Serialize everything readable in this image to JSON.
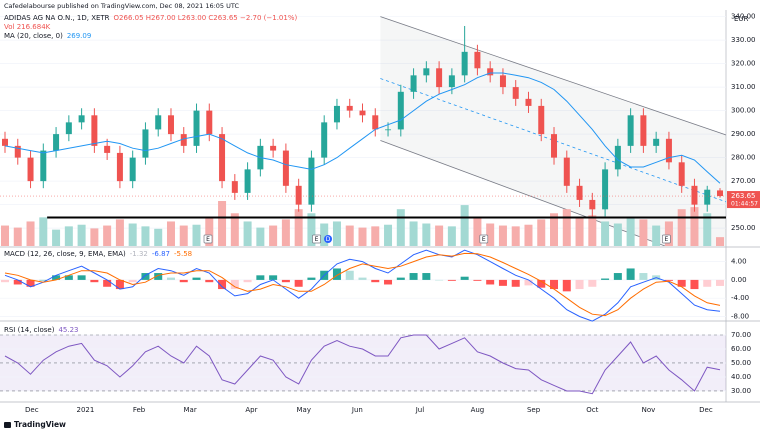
{
  "header": {
    "publisher": "Cafedelabourse published on TradingView.com, Dec 08, 2021 16:05 UTC",
    "footer": "TradingView"
  },
  "chart_data": [
    {
      "type": "candlestick",
      "title": "ADIDAS AG NA O.N., 1D, XETR",
      "ohlc_text": "O266.05 H267.00 L263.00 C263.65 −2.70 (−1.01%)",
      "volume_text": "Vol 216.684K",
      "ma_title": "MA (20, close, 0)",
      "currency": "EUR",
      "countdown": "01:44:57",
      "open": [
        288,
        285,
        280,
        270,
        283,
        290,
        295,
        298,
        285,
        282,
        270,
        280,
        292,
        298,
        290,
        285,
        300,
        290,
        270,
        265,
        275,
        285,
        283,
        268,
        260,
        280,
        295,
        302,
        300,
        298,
        292,
        292,
        308,
        315,
        318,
        310,
        315,
        325,
        318,
        315,
        310,
        305,
        302,
        290,
        280,
        268,
        262,
        258,
        275,
        285,
        298,
        285,
        288,
        278,
        268,
        260,
        266.05
      ],
      "high": [
        291,
        288,
        283,
        286,
        293,
        298,
        301,
        301,
        288,
        285,
        283,
        295,
        301,
        301,
        293,
        303,
        303,
        293,
        273,
        278,
        288,
        288,
        286,
        271,
        283,
        298,
        305,
        305,
        303,
        301,
        295,
        311,
        318,
        321,
        321,
        318,
        336,
        328,
        321,
        318,
        313,
        308,
        305,
        293,
        283,
        271,
        265,
        278,
        288,
        301,
        301,
        291,
        291,
        281,
        271,
        268,
        267
      ],
      "low": [
        282,
        277,
        267,
        267,
        280,
        287,
        292,
        282,
        279,
        267,
        267,
        277,
        289,
        287,
        282,
        282,
        287,
        267,
        262,
        262,
        272,
        280,
        265,
        257,
        257,
        277,
        292,
        297,
        295,
        289,
        289,
        289,
        305,
        312,
        307,
        307,
        312,
        315,
        312,
        307,
        302,
        299,
        287,
        277,
        265,
        259,
        255,
        255,
        272,
        282,
        282,
        282,
        275,
        265,
        257,
        257,
        263
      ],
      "close": [
        285,
        280,
        270,
        283,
        290,
        295,
        298,
        285,
        282,
        270,
        280,
        292,
        298,
        290,
        285,
        300,
        290,
        270,
        265,
        275,
        285,
        283,
        268,
        260,
        280,
        295,
        302,
        300,
        298,
        292,
        292,
        308,
        315,
        318,
        310,
        315,
        325,
        318,
        315,
        310,
        305,
        302,
        290,
        280,
        268,
        262,
        258,
        275,
        285,
        298,
        285,
        288,
        278,
        268,
        260,
        266.35,
        263.65
      ],
      "volume": [
        500,
        450,
        600,
        700,
        400,
        480,
        520,
        430,
        500,
        650,
        550,
        480,
        420,
        600,
        500,
        520,
        700,
        1100,
        800,
        600,
        450,
        500,
        650,
        900,
        800,
        550,
        600,
        500,
        450,
        480,
        520,
        900,
        600,
        550,
        500,
        480,
        1000,
        700,
        550,
        500,
        480,
        520,
        650,
        800,
        900,
        700,
        750,
        600,
        550,
        700,
        650,
        500,
        600,
        900,
        950,
        800,
        216.684
      ],
      "ma": [
        285,
        284,
        283,
        282,
        283,
        284,
        285,
        286,
        287,
        286,
        284,
        283,
        284,
        286,
        288,
        289,
        290,
        288,
        285,
        282,
        280,
        279,
        277,
        276,
        275,
        277,
        280,
        284,
        288,
        292,
        294,
        296,
        300,
        304,
        307,
        309,
        311,
        314,
        316,
        316,
        315,
        314,
        312,
        309,
        304,
        298,
        292,
        285,
        279,
        276,
        276,
        278,
        280,
        281,
        279,
        274,
        269.09
      ],
      "ylim": [
        242.4,
        342.8
      ],
      "yticks": [
        {
          "value": 250,
          "label": "250.00"
        },
        {
          "value": 260,
          "label": "260.00"
        },
        {
          "value": 270,
          "label": "270.00"
        },
        {
          "value": 280,
          "label": "280.00"
        },
        {
          "value": 290,
          "label": "290.00"
        },
        {
          "value": 300,
          "label": "300.00"
        },
        {
          "value": 310,
          "label": "310.00"
        },
        {
          "value": 320,
          "label": "320.00"
        },
        {
          "value": 330,
          "label": "330.00"
        },
        {
          "value": 340,
          "label": "340.00"
        }
      ],
      "channel": {
        "x": [
          29.4,
          56.6
        ],
        "top": [
          340,
          289.4
        ],
        "bottom": [
          287.3,
          232.5
        ]
      },
      "support": {
        "x": [
          3.3,
          56.6
        ],
        "price": 254.5
      },
      "events": [
        {
          "label": "E",
          "at": 15.9
        },
        {
          "label": "E",
          "at": 24.4
        },
        {
          "label": "D",
          "at": 25.3
        },
        {
          "label": "E",
          "at": 37.5
        },
        {
          "label": "E",
          "at": 51.8
        }
      ],
      "time_labels": [
        {
          "at": 2.1,
          "label": "Dec"
        },
        {
          "at": 6.3,
          "label": "2021"
        },
        {
          "at": 10.5,
          "label": "Feb"
        },
        {
          "at": 14.5,
          "label": "Mar"
        },
        {
          "at": 19.3,
          "label": "Apr"
        },
        {
          "at": 23.4,
          "label": "May"
        },
        {
          "at": 27.6,
          "label": "Jun"
        },
        {
          "at": 32.5,
          "label": "Jul"
        },
        {
          "at": 37.0,
          "label": "Aug"
        },
        {
          "at": 41.4,
          "label": "Sep"
        },
        {
          "at": 46.0,
          "label": "Oct"
        },
        {
          "at": 50.4,
          "label": "Nov"
        },
        {
          "at": 54.9,
          "label": "Dec"
        }
      ],
      "colors": {
        "up": "#26a69a",
        "down": "#ef5350",
        "volume_up": "#a3d9d3",
        "volume_down": "#f6adab",
        "ma": "#2196f3"
      },
      "grid": true
    },
    {
      "type": "macd",
      "title": "MACD (12, 26, close, 9, EMA, EMA)",
      "histogram": [
        -0.5,
        -1,
        -1.5,
        0,
        1,
        1,
        1,
        -0.5,
        -1.5,
        -2,
        -0.5,
        1.5,
        1.5,
        0.5,
        -0.5,
        0.5,
        -0.5,
        -2,
        -2,
        -0.5,
        1,
        1,
        -0.5,
        -1.5,
        0.5,
        2,
        2.5,
        2,
        0.5,
        -0.5,
        -1,
        0.5,
        1.5,
        1.5,
        0,
        -0.2,
        0.7,
        -0.2,
        -1,
        -1.3,
        -1.5,
        -1.2,
        -1.7,
        -2,
        -2.5,
        -2,
        -1.5,
        0.3,
        1.5,
        2.5,
        1.5,
        1,
        -0.2,
        -1.5,
        -2,
        -1.5,
        -1.32
      ],
      "macd": [
        1,
        0,
        -1.5,
        -0.5,
        1,
        2,
        3,
        1.5,
        0,
        -2,
        -1.5,
        1,
        2.5,
        2,
        1,
        2.5,
        1.5,
        -1.5,
        -3.5,
        -3,
        -1,
        0,
        -2,
        -4,
        -2,
        1,
        3.5,
        4.5,
        4,
        2.5,
        1.5,
        3.5,
        5.5,
        6.5,
        5.5,
        5,
        6.5,
        5.5,
        4,
        2.5,
        1,
        0,
        -2,
        -4,
        -6.5,
        -8,
        -9,
        -7.5,
        -5,
        -1.5,
        -0.5,
        0.5,
        -0.5,
        -3,
        -5.5,
        -6.5,
        -6.87
      ],
      "signal": [
        1.5,
        1,
        0,
        -0.5,
        0,
        1,
        2,
        2,
        1.5,
        0,
        -1,
        -0.5,
        1,
        1.5,
        1.5,
        2,
        2,
        0.5,
        -1.5,
        -2.5,
        -2,
        -1,
        -1.5,
        -2.5,
        -2.5,
        -1,
        1,
        2.5,
        3.5,
        3,
        2.5,
        3,
        4,
        5,
        5.5,
        5.2,
        5.8,
        5.7,
        5,
        3.8,
        2.5,
        1.2,
        -0.3,
        -2,
        -4,
        -6,
        -7.5,
        -7.8,
        -6.5,
        -4,
        -2,
        -0.5,
        -0.3,
        -1.5,
        -3.5,
        -5,
        -5.58
      ],
      "ylim": [
        -8.76,
        6.97
      ],
      "yticks": [
        {
          "value": 4,
          "label": "4.00"
        },
        {
          "value": 0,
          "label": "0.00"
        },
        {
          "value": -4,
          "label": "-4.00"
        },
        {
          "value": -8,
          "label": "-8.00"
        }
      ],
      "colors": {
        "macd": "#2962ff",
        "signal": "#ff6d00",
        "hist": [
          "#26a69a",
          "#b2dfdb",
          "#ffcdd2",
          "#ff5252"
        ]
      }
    },
    {
      "type": "line",
      "title": "RSI (14, close)",
      "values": [
        55,
        50,
        42,
        52,
        58,
        62,
        64,
        52,
        48,
        40,
        48,
        58,
        62,
        55,
        50,
        62,
        55,
        38,
        35,
        45,
        55,
        52,
        40,
        35,
        52,
        62,
        66,
        62,
        60,
        55,
        55,
        68,
        70,
        70,
        60,
        64,
        68,
        58,
        55,
        50,
        46,
        45,
        38,
        34,
        30,
        30,
        28,
        45,
        55,
        65,
        50,
        55,
        45,
        38,
        30,
        47,
        45.23
      ],
      "ylim": [
        22.1,
        79.3
      ],
      "yticks": [
        {
          "value": 70,
          "label": "70.00"
        },
        {
          "value": 60,
          "label": "60.00"
        },
        {
          "value": 50,
          "label": "50.00"
        },
        {
          "value": 40,
          "label": "40.00"
        },
        {
          "value": 30,
          "label": "30.00"
        }
      ],
      "band": [
        30,
        70
      ],
      "midline": 50,
      "colors": {
        "line": "#7e57c2",
        "band": "rgba(126,87,194,0.1)"
      }
    }
  ]
}
